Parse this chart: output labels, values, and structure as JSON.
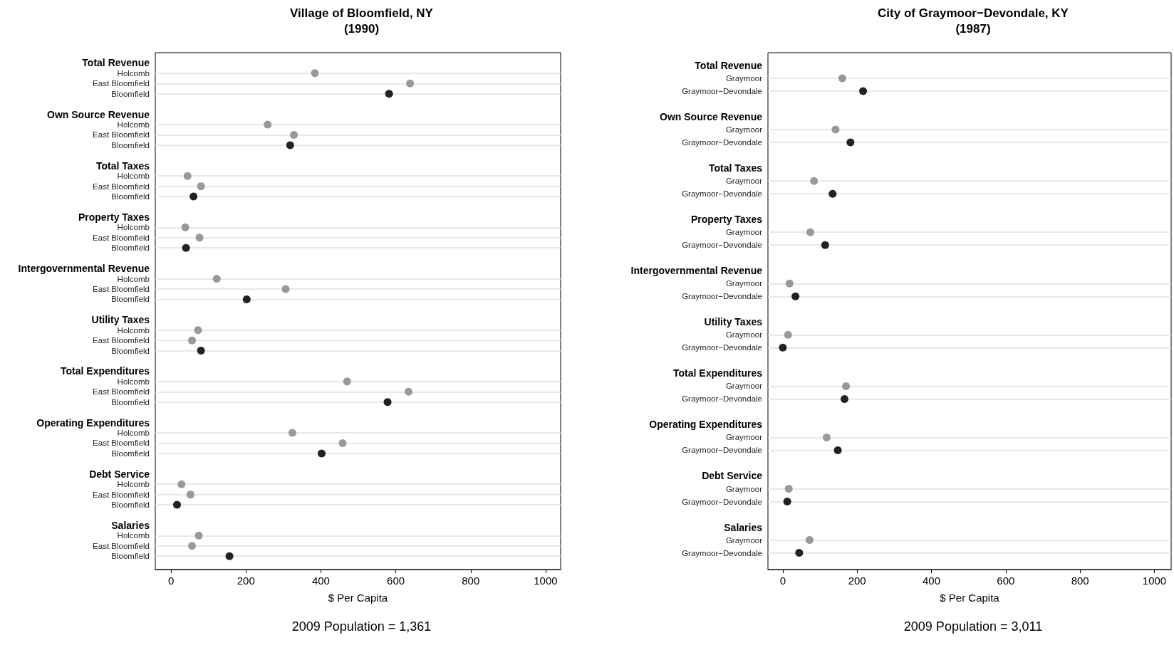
{
  "chart_data": [
    {
      "type": "scatter",
      "title": "Village of Bloomfield, NY\n(1990)",
      "xlabel": "$ Per Capita",
      "annotations": [
        "2009 Population = 1,361"
      ],
      "categories": [
        "Total Revenue",
        "Holcomb",
        "East Bloomfield",
        "Bloomfield",
        "Own Source Revenue",
        "Holcomb",
        "East Bloomfield",
        "Bloomfield",
        "Total Taxes",
        "Holcomb",
        "East Bloomfield",
        "Bloomfield",
        "Property Taxes",
        "Holcomb",
        "East Bloomfield",
        "Bloomfield",
        "Intergovernmental Revenue",
        "Holcomb",
        "East Bloomfield",
        "Bloomfield",
        "Utility Taxes",
        "Holcomb",
        "East Bloomfield",
        "Bloomfield",
        "Total Expenditures",
        "Holcomb",
        "East Bloomfield",
        "Bloomfield",
        "Operating Expenditures",
        "Holcomb",
        "East Bloomfield",
        "Bloomfield",
        "Debt Service",
        "Holcomb",
        "East Bloomfield",
        "Bloomfield",
        "Salaries",
        "Holcomb",
        "East Bloomfield",
        "Bloomfield"
      ],
      "series": [
        {
          "color": "#999999",
          "values": [
            null,
            384,
            638,
            null,
            null,
            258,
            328,
            null,
            null,
            44,
            80,
            null,
            null,
            38,
            76,
            null,
            null,
            122,
            306,
            null,
            null,
            72,
            56,
            null,
            null,
            470,
            634,
            null,
            null,
            324,
            458,
            null,
            null,
            28,
            52,
            null,
            null,
            74,
            56,
            null
          ]
        },
        {
          "color": "#222222",
          "values": [
            null,
            null,
            null,
            582,
            null,
            null,
            null,
            318,
            null,
            null,
            null,
            60,
            null,
            null,
            null,
            40,
            null,
            null,
            null,
            202,
            null,
            null,
            null,
            80,
            null,
            null,
            null,
            578,
            null,
            null,
            null,
            402,
            null,
            null,
            null,
            16,
            null,
            null,
            null,
            156
          ]
        }
      ],
      "xlim": [
        -42,
        1040
      ],
      "xticks": [
        0,
        200,
        400,
        600,
        800,
        1000
      ],
      "grid": "y",
      "marker": "circle",
      "orientation": "horizontal"
    },
    {
      "type": "scatter",
      "title": "City of Graymoor−Devondale, KY\n(1987)",
      "xlabel": "$ Per Capita",
      "annotations": [
        "2009 Population = 3,011"
      ],
      "categories": [
        "Total Revenue",
        "Graymoor",
        "Graymoor−Devondale",
        "Own Source Revenue",
        "Graymoor",
        "Graymoor−Devondale",
        "Total Taxes",
        "Graymoor",
        "Graymoor−Devondale",
        "Property Taxes",
        "Graymoor",
        "Graymoor−Devondale",
        "Intergovernmental Revenue",
        "Graymoor",
        "Graymoor−Devondale",
        "Utility Taxes",
        "Graymoor",
        "Graymoor−Devondale",
        "Total Expenditures",
        "Graymoor",
        "Graymoor−Devondale",
        "Operating Expenditures",
        "Graymoor",
        "Graymoor−Devondale",
        "Debt Service",
        "Graymoor",
        "Graymoor−Devondale",
        "Salaries",
        "Graymoor",
        "Graymoor−Devondale"
      ],
      "series": [
        {
          "color": "#999999",
          "values": [
            null,
            160,
            null,
            null,
            142,
            null,
            null,
            84,
            null,
            null,
            74,
            null,
            null,
            18,
            null,
            null,
            14,
            null,
            null,
            170,
            null,
            null,
            118,
            null,
            null,
            16,
            null,
            null,
            72,
            null
          ]
        },
        {
          "color": "#222222",
          "values": [
            null,
            null,
            216,
            null,
            null,
            182,
            null,
            null,
            134,
            null,
            null,
            114,
            null,
            null,
            34,
            null,
            null,
            0,
            null,
            null,
            166,
            null,
            null,
            148,
            null,
            null,
            12,
            null,
            null,
            44
          ]
        }
      ],
      "xlim": [
        -40,
        1045
      ],
      "xticks": [
        0,
        200,
        400,
        600,
        800,
        1000
      ],
      "grid": "y",
      "marker": "circle",
      "orientation": "horizontal"
    }
  ]
}
